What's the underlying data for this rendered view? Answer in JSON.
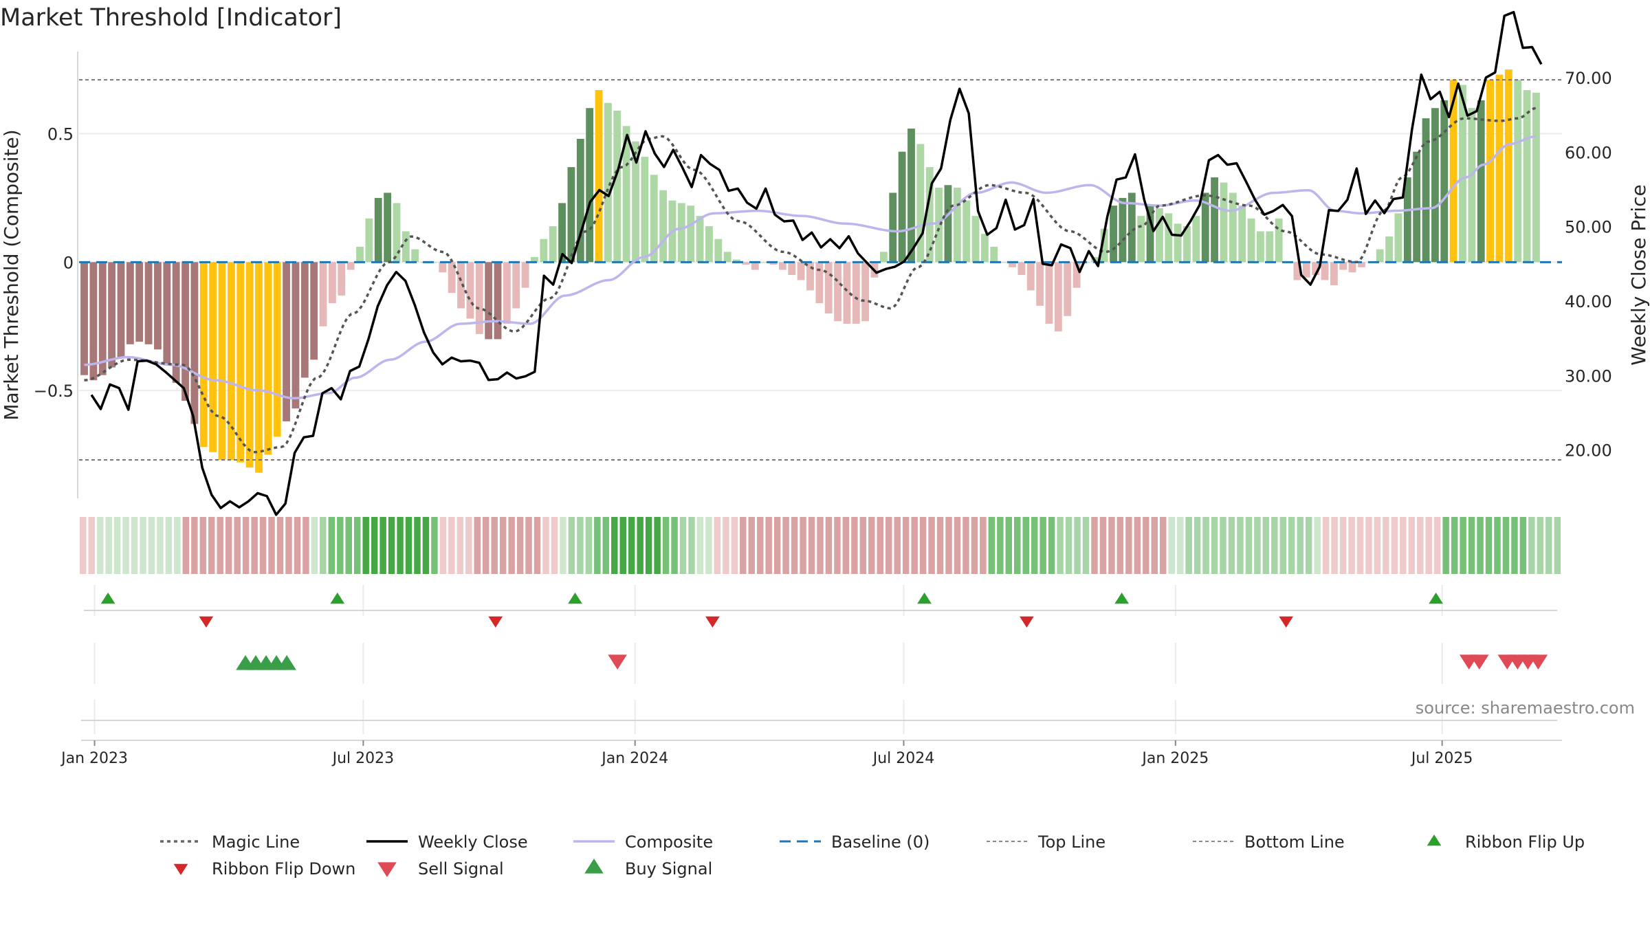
{
  "chart_data": {
    "type": "bar",
    "title": "Market Threshold [Indicator]",
    "ylabel_left": "Market Threshold (Composite)",
    "ylabel_right": "Weekly Close Price",
    "source": "source: sharemaestro.com",
    "left_axis": {
      "ylim": [
        -0.92,
        0.82
      ],
      "ticks": [
        0.5,
        0,
        -0.5
      ],
      "tick_labels": [
        "0.5",
        "0",
        "−0.5"
      ]
    },
    "right_axis": {
      "ylim": [
        13.5,
        73.5
      ],
      "ticks": [
        70,
        60,
        50,
        40,
        30,
        20
      ],
      "tick_labels": [
        "70.00",
        "60.00",
        "50.00",
        "40.00",
        "30.00",
        "20.00"
      ]
    },
    "x_ticks": [
      {
        "label": "Jan 2023",
        "week": 0
      },
      {
        "label": "Jul 2023",
        "week": 26
      },
      {
        "label": "Jan 2024",
        "week": 52.3
      },
      {
        "label": "Jul 2024",
        "week": 78.3
      },
      {
        "label": "Jan 2025",
        "week": 104.6
      },
      {
        "label": "Jul 2025",
        "week": 130.4
      }
    ],
    "x_range_weeks": [
      -1.5,
      142
    ],
    "top_line": 0.71,
    "bottom_line": -0.77,
    "baseline": 0,
    "composite_bars": [
      -0.44,
      -0.46,
      -0.44,
      -0.41,
      -0.37,
      -0.32,
      -0.31,
      -0.32,
      -0.34,
      -0.4,
      -0.47,
      -0.54,
      -0.63,
      -0.72,
      -0.74,
      -0.77,
      -0.77,
      -0.78,
      -0.8,
      -0.82,
      -0.75,
      -0.68,
      -0.62,
      -0.57,
      -0.45,
      -0.38,
      -0.25,
      -0.16,
      -0.13,
      -0.03,
      0.06,
      0.17,
      0.25,
      0.27,
      0.23,
      0.12,
      0.05,
      0.0,
      0.0,
      -0.04,
      -0.12,
      -0.18,
      -0.22,
      -0.28,
      -0.3,
      -0.3,
      -0.24,
      -0.18,
      -0.1,
      0.02,
      0.09,
      0.14,
      0.23,
      0.37,
      0.48,
      0.6,
      0.67,
      0.62,
      0.59,
      0.53,
      0.47,
      0.41,
      0.34,
      0.28,
      0.24,
      0.23,
      0.22,
      0.18,
      0.14,
      0.09,
      0.04,
      0.01,
      -0.01,
      -0.03,
      0.0,
      -0.01,
      -0.03,
      -0.05,
      -0.07,
      -0.11,
      -0.16,
      -0.2,
      -0.23,
      -0.24,
      -0.24,
      -0.23,
      -0.06,
      0.04,
      0.27,
      0.43,
      0.52,
      0.46,
      0.37,
      0.29,
      0.3,
      0.29,
      0.24,
      0.18,
      0.11,
      0.06,
      0.0,
      -0.02,
      -0.05,
      -0.11,
      -0.17,
      -0.24,
      -0.27,
      -0.21,
      -0.1,
      0.0,
      0.02,
      0.13,
      0.22,
      0.25,
      0.27,
      0.18,
      0.22,
      0.21,
      0.19,
      0.15,
      0.14,
      0.18,
      0.27,
      0.33,
      0.31,
      0.27,
      0.22,
      0.17,
      0.12,
      0.12,
      0.17,
      0.0,
      -0.07,
      -0.06,
      -0.05,
      -0.07,
      -0.09,
      -0.03,
      -0.04,
      -0.02,
      0.0,
      0.05,
      0.1,
      0.19,
      0.33,
      0.43,
      0.56,
      0.6,
      0.63,
      0.71,
      0.69,
      0.6,
      0.63,
      0.71,
      0.73,
      0.75,
      0.71,
      0.67,
      0.66
    ],
    "composite_bar_colors": {
      "strong_negative": "#a87878",
      "weak_negative": "#e6b8b8",
      "strong_positive": "#5e8f5e",
      "weak_positive": "#add8a5",
      "extreme": "#ffc20e"
    },
    "magic_line_knots": [
      [
        0,
        -0.46
      ],
      [
        5,
        -0.38
      ],
      [
        11,
        -0.4
      ],
      [
        15,
        -0.6
      ],
      [
        19,
        -0.74
      ],
      [
        22,
        -0.72
      ],
      [
        26,
        -0.45
      ],
      [
        30,
        -0.2
      ],
      [
        34,
        0.0
      ],
      [
        36.5,
        0.1
      ],
      [
        40,
        0.04
      ],
      [
        44,
        -0.18
      ],
      [
        48,
        -0.27
      ],
      [
        52,
        -0.14
      ],
      [
        56,
        0.12
      ],
      [
        60,
        0.37
      ],
      [
        63,
        0.48
      ],
      [
        64.5,
        0.49
      ],
      [
        68,
        0.36
      ],
      [
        73,
        0.16
      ],
      [
        78,
        0.04
      ],
      [
        82,
        -0.03
      ],
      [
        87,
        -0.15
      ],
      [
        90,
        -0.18
      ],
      [
        93,
        -0.02
      ],
      [
        97,
        0.22
      ],
      [
        101,
        0.3
      ],
      [
        105,
        0.27
      ],
      [
        110,
        0.12
      ],
      [
        114,
        0.04
      ],
      [
        118,
        0.14
      ],
      [
        120,
        0.22
      ],
      [
        125,
        0.26
      ],
      [
        130,
        0.22
      ],
      [
        134,
        0.12
      ],
      [
        138,
        0.03
      ],
      [
        142,
        0.0
      ],
      [
        145,
        0.2
      ],
      [
        147,
        0.33
      ],
      [
        150,
        0.47
      ],
      [
        154,
        0.56
      ],
      [
        158,
        0.55
      ],
      [
        160,
        0.56
      ],
      [
        162,
        0.6
      ]
    ],
    "composite_line_knots": [
      [
        0,
        -0.4
      ],
      [
        5,
        -0.37
      ],
      [
        10,
        -0.4
      ],
      [
        15,
        -0.46
      ],
      [
        20,
        -0.5
      ],
      [
        24,
        -0.53
      ],
      [
        28,
        -0.51
      ],
      [
        31,
        -0.45
      ],
      [
        35,
        -0.38
      ],
      [
        39,
        -0.31
      ],
      [
        43,
        -0.24
      ],
      [
        47,
        -0.23
      ],
      [
        51,
        -0.24
      ],
      [
        55,
        -0.13
      ],
      [
        60,
        -0.07
      ],
      [
        64,
        0.02
      ],
      [
        68,
        0.13
      ],
      [
        72,
        0.19
      ],
      [
        77,
        0.2
      ],
      [
        82,
        0.18
      ],
      [
        87,
        0.15
      ],
      [
        93,
        0.12
      ],
      [
        97,
        0.15
      ],
      [
        102,
        0.27
      ],
      [
        106,
        0.31
      ],
      [
        110,
        0.27
      ],
      [
        115,
        0.3
      ],
      [
        119,
        0.23
      ],
      [
        123,
        0.22
      ],
      [
        127,
        0.24
      ],
      [
        131,
        0.2
      ],
      [
        136,
        0.27
      ],
      [
        140,
        0.28
      ],
      [
        143,
        0.2
      ],
      [
        146,
        0.19
      ],
      [
        150,
        0.2
      ],
      [
        154,
        0.21
      ],
      [
        158,
        0.33
      ],
      [
        160,
        0.38
      ],
      [
        163,
        0.46
      ],
      [
        166,
        0.49
      ]
    ],
    "weekly_close": [
      27.4,
      25.5,
      28.8,
      28.3,
      25.4,
      31.9,
      32.0,
      31.5,
      30.5,
      29.4,
      28.3,
      24.6,
      17.6,
      14.0,
      12.2,
      13.1,
      12.3,
      13.1,
      14.2,
      13.8,
      11.3,
      12.8,
      19.6,
      21.7,
      21.9,
      27.6,
      28.3,
      26.8,
      30.6,
      31.2,
      34.9,
      39.3,
      42.1,
      43.9,
      42.7,
      39.5,
      35.8,
      33.1,
      31.5,
      32.4,
      31.9,
      32.0,
      31.7,
      29.4,
      29.5,
      30.4,
      29.6,
      29.9,
      30.5,
      43.4,
      42.2,
      46.3,
      45.1,
      49.2,
      53.3,
      54.9,
      54.1,
      57.5,
      62.3,
      58.6,
      62.8,
      59.8,
      58.0,
      60.3,
      57.9,
      55.3,
      59.6,
      58.4,
      57.6,
      54.8,
      55.1,
      53.2,
      52.4,
      55.1,
      51.6,
      50.7,
      50.8,
      48.2,
      49.2,
      47.2,
      48.3,
      47.1,
      48.7,
      46.4,
      45.1,
      43.8,
      44.3,
      44.6,
      45.3,
      47.1,
      49.1,
      55.8,
      57.8,
      64.3,
      68.5,
      65.2,
      52.1,
      48.9,
      49.8,
      53.6,
      49.6,
      50.2,
      53.7,
      45.0,
      44.8,
      47.6,
      47.1,
      43.9,
      46.7,
      44.7,
      51.3,
      56.3,
      56.6,
      59.7,
      53.6,
      49.4,
      51.3,
      48.9,
      48.8,
      50.7,
      52.9,
      58.9,
      59.6,
      58.3,
      58.5,
      56.1,
      53.6,
      51.6,
      52.1,
      52.9,
      51.4,
      43.5,
      42.2,
      44.6,
      52.2,
      52.1,
      53.6,
      57.8,
      51.7,
      53.5,
      51.8,
      53.7,
      53.9,
      63.1,
      70.4,
      67.1,
      68.1,
      64.7,
      69.2,
      64.9,
      65.5,
      70.0,
      70.7,
      78.3,
      78.8,
      74.0,
      74.1,
      71.8
    ],
    "ribbon_levels": [
      -1,
      -1,
      1,
      1,
      1,
      1,
      1,
      1,
      1,
      1,
      1,
      1,
      -2,
      -2,
      -2,
      -2,
      -2,
      -2,
      -2,
      -2,
      -2,
      -2,
      -2,
      -2,
      -2,
      -2,
      -2,
      1,
      2,
      3,
      3,
      3,
      3,
      4,
      4,
      4,
      4,
      4,
      4,
      4,
      4,
      3,
      -1,
      -1,
      -1,
      -1,
      -2,
      -2,
      -2,
      -2,
      -2,
      -2,
      -2,
      -2,
      -1,
      -1,
      1,
      2,
      2,
      2,
      3,
      3,
      4,
      4,
      4,
      4,
      4,
      4,
      3,
      3,
      2,
      2,
      1,
      1,
      -1,
      -1,
      -1,
      -2,
      -2,
      -2,
      -2,
      -2,
      -2,
      -2,
      -2,
      -2,
      -2,
      -2,
      -2,
      -2,
      -2,
      -2,
      -2,
      -2,
      -2,
      -2,
      -2,
      -2,
      -2,
      -2,
      -2,
      -2,
      -2,
      -2,
      -2,
      -2,
      3,
      3,
      3,
      3,
      3,
      3,
      3,
      3,
      2,
      2,
      2,
      2,
      -2,
      -2,
      -2,
      -2,
      -2,
      -2,
      -2,
      -2,
      -2,
      1,
      1,
      2,
      2,
      2,
      2,
      2,
      2,
      2,
      2,
      2,
      2,
      2,
      2,
      2,
      2,
      2,
      1,
      -1,
      -1,
      -1,
      -1,
      -1,
      -1,
      -1,
      -1,
      -1,
      -1,
      -1,
      -1,
      -1,
      -1,
      3,
      3,
      3,
      3,
      3,
      3,
      3,
      3,
      3,
      3,
      2,
      2,
      2,
      2
    ],
    "ribbon_flip_up_weeks": [
      1.3,
      23.5,
      46.5,
      80.3,
      99.4,
      129.8
    ],
    "ribbon_flip_down_weeks": [
      10.8,
      38.8,
      59.8,
      90.2,
      115.3
    ],
    "buy_signal_weeks": [
      14.6,
      15.6,
      16.6,
      17.6,
      18.6
    ],
    "sell_signal_weeks": [
      50.6,
      133.0,
      134.0,
      136.7,
      137.7,
      138.7,
      139.7
    ],
    "legend": [
      {
        "label": "Magic Line",
        "kind": "dotted-line",
        "color": "#666666"
      },
      {
        "label": "Weekly Close",
        "kind": "solid-line",
        "color": "#000000"
      },
      {
        "label": "Composite",
        "kind": "solid-line",
        "color": "#bdb5ec"
      },
      {
        "label": "Baseline (0)",
        "kind": "dashed-line",
        "color": "#1f77b4"
      },
      {
        "label": "Top Line",
        "kind": "thin-dotted-line",
        "color": "#888888"
      },
      {
        "label": "Bottom Line",
        "kind": "thin-dotted-line",
        "color": "#888888"
      },
      {
        "label": "Ribbon Flip Up",
        "kind": "triangle-up",
        "color": "#2ca02c"
      },
      {
        "label": "Ribbon Flip Down",
        "kind": "triangle-down",
        "color": "#d62728"
      },
      {
        "label": "Sell Signal",
        "kind": "big-triangle-down",
        "color": "#e04a55"
      },
      {
        "label": "Buy Signal",
        "kind": "big-triangle-up",
        "color": "#3a9e49"
      }
    ],
    "colors": {
      "weekly_close": "#000000",
      "composite_line": "#bdb5ec",
      "magic_line": "#555555",
      "baseline": "#1f77b4",
      "threshold_lines": "#777777",
      "ribbon_up": "#2ca02c",
      "ribbon_down": "#d62728",
      "buy": "#3a9e49",
      "sell": "#e04a55",
      "axis_grid": "#ebebeb"
    }
  }
}
